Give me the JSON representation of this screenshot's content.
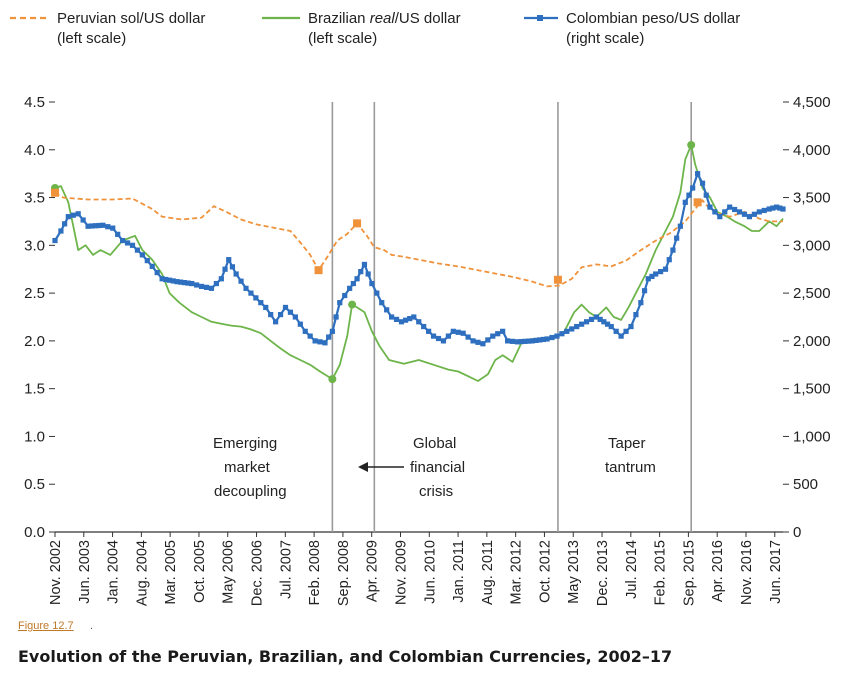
{
  "figure_link": "Figure 12.7",
  "figure_title": "Evolution of the Peruvian, Brazilian, and Colombian Currencies, 2002–17",
  "colors": {
    "sol": "#f0923a",
    "real": "#6db54a",
    "peso": "#2e6fbf",
    "event_line": "#9a9a9a",
    "axis": "#333333",
    "link": "#c07a2a"
  },
  "chart_data": {
    "type": "line",
    "legend_position": "top",
    "grid": false,
    "y_left": {
      "ylim": [
        0,
        4.5
      ],
      "ticks": [
        "0.0",
        "0.5",
        "1.0",
        "1.5",
        "2.0",
        "2.5",
        "3.0",
        "3.5",
        "4.0",
        "4.5"
      ]
    },
    "y_right": {
      "ylim": [
        0,
        4500
      ],
      "ticks": [
        "0",
        "500",
        "1,000",
        "1,500",
        "2,000",
        "2,500",
        "3,000",
        "3,500",
        "4,000",
        "4,500"
      ]
    },
    "x_range": [
      2002.83,
      2017.58
    ],
    "x_tick_labels": [
      "Nov. 2002",
      "Jun. 2003",
      "Jan. 2004",
      "Aug. 2004",
      "Mar. 2005",
      "Oct. 2005",
      "May 2006",
      "Dec. 2006",
      "Jul. 2007",
      "Feb. 2008",
      "Sep. 2008",
      "Apr. 2009",
      "Nov. 2009",
      "Jun. 2010",
      "Jan. 2011",
      "Aug. 2011",
      "Mar. 2012",
      "Oct. 2012",
      "May 2013",
      "Dec. 2013",
      "Jul. 2014",
      "Feb. 2015",
      "Sep. 2015",
      "Apr. 2016",
      "Nov. 2016",
      "Jun. 2017"
    ],
    "series": [
      {
        "name_parts": [
          "Peruvian sol/US dollar",
          "(left scale)"
        ],
        "axis": "left",
        "style": "dashed",
        "color_key": "sol",
        "points": [
          [
            2002.83,
            3.55
          ],
          [
            2003.0,
            3.5
          ],
          [
            2003.5,
            3.48
          ],
          [
            2004.0,
            3.48
          ],
          [
            2004.4,
            3.49
          ],
          [
            2004.8,
            3.38
          ],
          [
            2005.0,
            3.3
          ],
          [
            2005.4,
            3.27
          ],
          [
            2005.8,
            3.29
          ],
          [
            2006.05,
            3.41
          ],
          [
            2006.3,
            3.35
          ],
          [
            2006.6,
            3.27
          ],
          [
            2006.9,
            3.22
          ],
          [
            2007.3,
            3.18
          ],
          [
            2007.6,
            3.15
          ],
          [
            2007.8,
            3.03
          ],
          [
            2008.0,
            2.9
          ],
          [
            2008.17,
            2.74
          ],
          [
            2008.35,
            2.88
          ],
          [
            2008.55,
            3.05
          ],
          [
            2008.75,
            3.12
          ],
          [
            2008.95,
            3.23
          ],
          [
            2009.15,
            3.1
          ],
          [
            2009.3,
            2.98
          ],
          [
            2009.5,
            2.95
          ],
          [
            2009.65,
            2.9
          ],
          [
            2009.9,
            2.88
          ],
          [
            2010.3,
            2.84
          ],
          [
            2010.6,
            2.81
          ],
          [
            2011.0,
            2.78
          ],
          [
            2011.4,
            2.74
          ],
          [
            2011.8,
            2.7
          ],
          [
            2012.1,
            2.67
          ],
          [
            2012.5,
            2.62
          ],
          [
            2012.8,
            2.57
          ],
          [
            2013.05,
            2.58
          ],
          [
            2013.3,
            2.65
          ],
          [
            2013.5,
            2.77
          ],
          [
            2013.8,
            2.8
          ],
          [
            2014.1,
            2.78
          ],
          [
            2014.4,
            2.84
          ],
          [
            2014.7,
            2.95
          ],
          [
            2015.0,
            3.05
          ],
          [
            2015.3,
            3.13
          ],
          [
            2015.6,
            3.25
          ],
          [
            2015.8,
            3.38
          ],
          [
            2015.95,
            3.47
          ],
          [
            2016.1,
            3.38
          ],
          [
            2016.3,
            3.33
          ],
          [
            2016.5,
            3.3
          ],
          [
            2016.8,
            3.35
          ],
          [
            2017.1,
            3.28
          ],
          [
            2017.3,
            3.25
          ],
          [
            2017.58,
            3.25
          ]
        ],
        "markers": [
          [
            2002.83,
            3.55
          ],
          [
            2008.17,
            2.74
          ],
          [
            2008.95,
            3.23
          ],
          [
            2013.02,
            2.64
          ],
          [
            2015.85,
            3.45
          ]
        ]
      },
      {
        "name_parts": [
          "Brazilian ",
          "real",
          "/US dollar",
          "(left scale)"
        ],
        "axis": "left",
        "style": "solid",
        "color_key": "real",
        "points": [
          [
            2002.83,
            3.6
          ],
          [
            2002.95,
            3.62
          ],
          [
            2003.1,
            3.45
          ],
          [
            2003.2,
            3.2
          ],
          [
            2003.3,
            2.95
          ],
          [
            2003.45,
            3.0
          ],
          [
            2003.6,
            2.9
          ],
          [
            2003.75,
            2.95
          ],
          [
            2003.95,
            2.9
          ],
          [
            2004.2,
            3.05
          ],
          [
            2004.45,
            3.1
          ],
          [
            2004.6,
            2.95
          ],
          [
            2004.8,
            2.85
          ],
          [
            2005.0,
            2.7
          ],
          [
            2005.15,
            2.5
          ],
          [
            2005.35,
            2.4
          ],
          [
            2005.6,
            2.3
          ],
          [
            2005.8,
            2.25
          ],
          [
            2006.0,
            2.2
          ],
          [
            2006.2,
            2.18
          ],
          [
            2006.4,
            2.16
          ],
          [
            2006.6,
            2.15
          ],
          [
            2006.8,
            2.12
          ],
          [
            2007.0,
            2.08
          ],
          [
            2007.2,
            2.0
          ],
          [
            2007.4,
            1.92
          ],
          [
            2007.6,
            1.85
          ],
          [
            2007.8,
            1.8
          ],
          [
            2008.0,
            1.75
          ],
          [
            2008.2,
            1.68
          ],
          [
            2008.45,
            1.6
          ],
          [
            2008.6,
            1.75
          ],
          [
            2008.75,
            2.05
          ],
          [
            2008.85,
            2.38
          ],
          [
            2008.95,
            2.35
          ],
          [
            2009.1,
            2.3
          ],
          [
            2009.25,
            2.1
          ],
          [
            2009.4,
            1.95
          ],
          [
            2009.6,
            1.8
          ],
          [
            2009.9,
            1.76
          ],
          [
            2010.2,
            1.8
          ],
          [
            2010.5,
            1.75
          ],
          [
            2010.8,
            1.7
          ],
          [
            2011.0,
            1.68
          ],
          [
            2011.2,
            1.63
          ],
          [
            2011.4,
            1.58
          ],
          [
            2011.6,
            1.65
          ],
          [
            2011.75,
            1.8
          ],
          [
            2011.9,
            1.85
          ],
          [
            2012.1,
            1.78
          ],
          [
            2012.3,
            2.0
          ],
          [
            2012.5,
            2.02
          ],
          [
            2012.8,
            2.03
          ],
          [
            2013.0,
            2.05
          ],
          [
            2013.15,
            2.1
          ],
          [
            2013.35,
            2.3
          ],
          [
            2013.5,
            2.38
          ],
          [
            2013.65,
            2.3
          ],
          [
            2013.8,
            2.25
          ],
          [
            2014.0,
            2.35
          ],
          [
            2014.15,
            2.25
          ],
          [
            2014.3,
            2.22
          ],
          [
            2014.45,
            2.35
          ],
          [
            2014.6,
            2.5
          ],
          [
            2014.8,
            2.7
          ],
          [
            2015.0,
            2.95
          ],
          [
            2015.2,
            3.15
          ],
          [
            2015.35,
            3.3
          ],
          [
            2015.5,
            3.55
          ],
          [
            2015.6,
            3.9
          ],
          [
            2015.72,
            4.05
          ],
          [
            2015.8,
            3.85
          ],
          [
            2015.95,
            3.6
          ],
          [
            2016.1,
            3.5
          ],
          [
            2016.25,
            3.35
          ],
          [
            2016.45,
            3.3
          ],
          [
            2016.6,
            3.25
          ],
          [
            2016.8,
            3.2
          ],
          [
            2016.95,
            3.15
          ],
          [
            2017.1,
            3.15
          ],
          [
            2017.3,
            3.25
          ],
          [
            2017.45,
            3.2
          ],
          [
            2017.58,
            3.28
          ]
        ],
        "markers": [
          [
            2002.83,
            3.6
          ],
          [
            2008.45,
            1.6
          ],
          [
            2008.85,
            2.38
          ],
          [
            2015.72,
            4.05
          ]
        ]
      },
      {
        "name_parts": [
          "Colombian peso/US dollar",
          "(right scale)"
        ],
        "axis": "right",
        "style": "marker",
        "color_key": "peso",
        "points": [
          [
            2002.83,
            3050
          ],
          [
            2002.95,
            3150
          ],
          [
            2003.1,
            3300
          ],
          [
            2003.3,
            3330
          ],
          [
            2003.5,
            3200
          ],
          [
            2003.8,
            3210
          ],
          [
            2004.0,
            3180
          ],
          [
            2004.2,
            3050
          ],
          [
            2004.4,
            3000
          ],
          [
            2004.6,
            2900
          ],
          [
            2004.8,
            2780
          ],
          [
            2005.0,
            2650
          ],
          [
            2005.3,
            2620
          ],
          [
            2005.6,
            2600
          ],
          [
            2005.8,
            2570
          ],
          [
            2006.0,
            2550
          ],
          [
            2006.2,
            2650
          ],
          [
            2006.35,
            2850
          ],
          [
            2006.5,
            2700
          ],
          [
            2006.7,
            2550
          ],
          [
            2006.9,
            2450
          ],
          [
            2007.1,
            2350
          ],
          [
            2007.3,
            2200
          ],
          [
            2007.5,
            2350
          ],
          [
            2007.7,
            2250
          ],
          [
            2007.9,
            2100
          ],
          [
            2008.1,
            2000
          ],
          [
            2008.3,
            1980
          ],
          [
            2008.45,
            2100
          ],
          [
            2008.6,
            2400
          ],
          [
            2008.8,
            2550
          ],
          [
            2008.95,
            2650
          ],
          [
            2009.1,
            2800
          ],
          [
            2009.25,
            2600
          ],
          [
            2009.45,
            2400
          ],
          [
            2009.65,
            2250
          ],
          [
            2009.85,
            2200
          ],
          [
            2010.1,
            2250
          ],
          [
            2010.3,
            2150
          ],
          [
            2010.5,
            2050
          ],
          [
            2010.7,
            2000
          ],
          [
            2010.9,
            2100
          ],
          [
            2011.1,
            2080
          ],
          [
            2011.3,
            2000
          ],
          [
            2011.5,
            1970
          ],
          [
            2011.7,
            2050
          ],
          [
            2011.9,
            2100
          ],
          [
            2012.0,
            2000
          ],
          [
            2012.2,
            1990
          ],
          [
            2012.5,
            2000
          ],
          [
            2012.8,
            2020
          ],
          [
            2013.0,
            2050
          ],
          [
            2013.2,
            2100
          ],
          [
            2013.4,
            2150
          ],
          [
            2013.6,
            2200
          ],
          [
            2013.8,
            2250
          ],
          [
            2013.95,
            2200
          ],
          [
            2014.1,
            2150
          ],
          [
            2014.3,
            2050
          ],
          [
            2014.5,
            2150
          ],
          [
            2014.7,
            2400
          ],
          [
            2014.85,
            2650
          ],
          [
            2015.0,
            2700
          ],
          [
            2015.2,
            2750
          ],
          [
            2015.35,
            2950
          ],
          [
            2015.5,
            3200
          ],
          [
            2015.6,
            3450
          ],
          [
            2015.75,
            3600
          ],
          [
            2015.85,
            3750
          ],
          [
            2015.95,
            3650
          ],
          [
            2016.1,
            3400
          ],
          [
            2016.3,
            3300
          ],
          [
            2016.5,
            3400
          ],
          [
            2016.7,
            3350
          ],
          [
            2016.9,
            3300
          ],
          [
            2017.1,
            3350
          ],
          [
            2017.3,
            3380
          ],
          [
            2017.45,
            3400
          ],
          [
            2017.58,
            3380
          ]
        ]
      }
    ],
    "event_lines": [
      2008.45,
      2009.3,
      2013.02,
      2015.72
    ],
    "annotations": {
      "emerging": [
        "Emerging",
        "market",
        "decoupling"
      ],
      "gfc": [
        "Global",
        "financial",
        "crisis"
      ],
      "taper": [
        "Taper",
        "tantrum"
      ]
    }
  }
}
